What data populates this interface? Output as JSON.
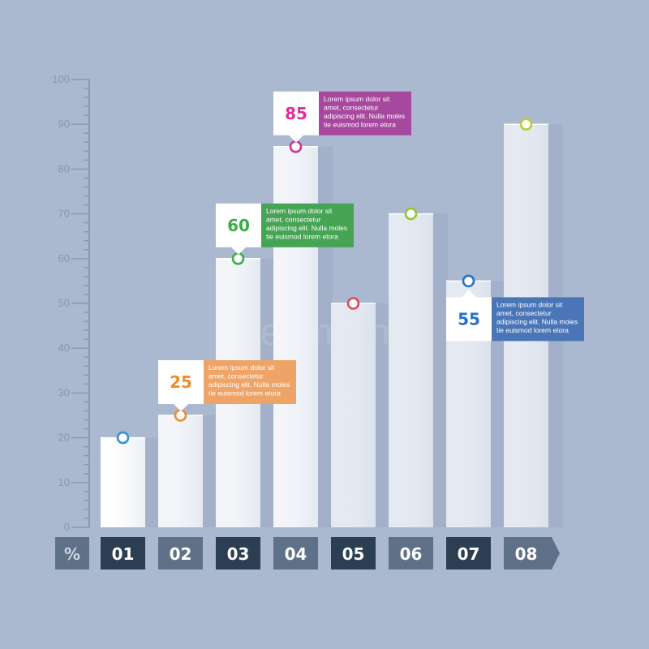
{
  "chart_data": {
    "type": "bar",
    "categories": [
      "01",
      "02",
      "03",
      "04",
      "05",
      "06",
      "07",
      "08"
    ],
    "values": [
      20,
      25,
      60,
      85,
      50,
      70,
      55,
      90
    ],
    "ylim": [
      0,
      100
    ],
    "y_ticks": [
      0,
      10,
      20,
      30,
      40,
      50,
      60,
      70,
      80,
      90,
      100
    ],
    "unit_label": "%",
    "marker_colors": [
      "#2e93d6",
      "#ec8a36",
      "#3fae4a",
      "#c8389a",
      "#e04a5a",
      "#9ac23a",
      "#2a6fc4",
      "#b8cc3a"
    ],
    "callouts": [
      {
        "category_index": 1,
        "value_text": "25",
        "number_color": "#f28c28",
        "box_color": "#eea466",
        "lines": [
          "Lorem ipsum dolor sit",
          "amet, consectetur",
          "adipiscing elit. Nulla moles",
          "tie euismod lorem etora"
        ]
      },
      {
        "category_index": 2,
        "value_text": "60",
        "number_color": "#3cae48",
        "box_color": "#46a454",
        "lines": [
          "Lorem ipsum dolor sit",
          "amet, consectetur",
          "adipiscing elit. Nulla moles",
          "tie euismod lorem etora"
        ]
      },
      {
        "category_index": 3,
        "value_text": "85",
        "number_color": "#e0309a",
        "box_color": "#a6489e",
        "lines": [
          "Lorem ipsum dolor sit",
          "amet, consectetur",
          "adipiscing elit. Nulla moles",
          "tie euismod lorem etora"
        ]
      },
      {
        "category_index": 6,
        "value_text": "55",
        "number_color": "#2a72c6",
        "box_color": "#4a76b8",
        "lines": [
          "Lorem ipsum dolor sit",
          "amet, consectetur",
          "adipiscing elit. Nulla moles",
          "tie euismod lorem etora"
        ]
      }
    ]
  },
  "watermark": "dreamstime",
  "colors": {
    "background": "#aab8d0",
    "axis": "#8a97ad",
    "label_dark": "#2c3e52",
    "label_mid": "#5f7189"
  }
}
